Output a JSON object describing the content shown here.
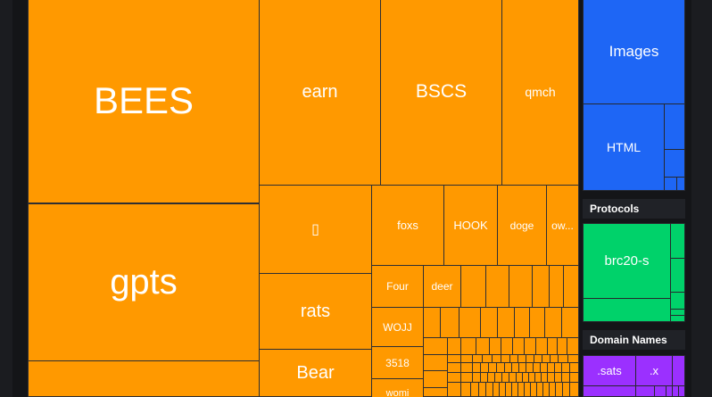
{
  "treemap": {
    "tiles": {
      "bees": "BEES",
      "gpts": "gpts",
      "earn": "earn",
      "bscs": "BSCS",
      "qmch": "qmch",
      "glyph": "▯",
      "foxs": "foxs",
      "hook": "HOOK",
      "doge": "doge",
      "ow": "ow...",
      "rats": "rats",
      "four": "Four",
      "deer": "deer",
      "wojj": "WOJJ",
      "n3518": "3518",
      "bear": "Bear",
      "womi": "womi"
    }
  },
  "sidebar": {
    "images_tile": "Images",
    "html_tile": "HTML",
    "protocols_heading": "Protocols",
    "brc20_tile": "brc20-s",
    "domains_heading": "Domain Names",
    "sats_tile": ".sats",
    "x_tile": ".x",
    "bottom_tile": "..."
  },
  "colors": {
    "background": "#141518",
    "tokens": "#ff9900",
    "images": "#1e66f5",
    "protocols": "#00d26a",
    "domains": "#9b30ff"
  }
}
